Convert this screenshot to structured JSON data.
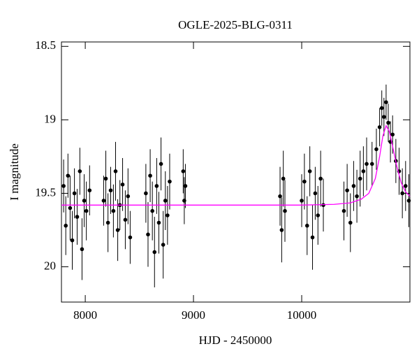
{
  "chart_data": {
    "type": "scatter",
    "title": "OGLE-2025-BLG-0311",
    "x_label": "HJD - 2450000",
    "y_label": "I magnitude",
    "xlim": [
      7780,
      11000
    ],
    "ylim": [
      20.24,
      18.47
    ],
    "xticks": [
      8000,
      9000,
      10000
    ],
    "yticks": [
      18.5,
      19,
      19.5,
      20
    ],
    "series": [
      {
        "type": "scatter",
        "color": "#000000",
        "x": [
          7800,
          7820,
          7840,
          7860,
          7880,
          7900,
          7925,
          7950,
          7970,
          7990,
          8010,
          8040,
          8170,
          8190,
          8210,
          8235,
          8260,
          8280,
          8300,
          8320,
          8345,
          8370,
          8395,
          8415,
          8560,
          8580,
          8600,
          8620,
          8640,
          8660,
          8680,
          8700,
          8720,
          8740,
          8760,
          8780,
          8905,
          8915,
          8925,
          9800,
          9815,
          9830,
          9845,
          10000,
          10025,
          10050,
          10075,
          10100,
          10125,
          10150,
          10175,
          10200,
          10390,
          10420,
          10450,
          10480,
          10510,
          10540,
          10570,
          10600,
          10650,
          10690,
          10720,
          10740,
          10760,
          10780,
          10800,
          10820,
          10840,
          10870,
          10900,
          10930,
          10960,
          10990
        ],
        "values": [
          19.45,
          19.72,
          19.38,
          19.6,
          19.82,
          19.5,
          19.66,
          19.35,
          19.88,
          19.55,
          19.62,
          19.48,
          19.55,
          19.4,
          19.7,
          19.48,
          19.62,
          19.35,
          19.75,
          19.58,
          19.44,
          19.68,
          19.52,
          19.8,
          19.5,
          19.78,
          19.38,
          19.62,
          19.9,
          19.45,
          19.7,
          19.3,
          19.85,
          19.55,
          19.65,
          19.42,
          19.35,
          19.55,
          19.45,
          19.52,
          19.75,
          19.4,
          19.62,
          19.55,
          19.42,
          19.72,
          19.35,
          19.8,
          19.5,
          19.65,
          19.4,
          19.58,
          19.62,
          19.48,
          19.7,
          19.45,
          19.52,
          19.4,
          19.35,
          19.3,
          19.3,
          19.2,
          19.05,
          18.92,
          18.98,
          18.88,
          19.02,
          19.15,
          19.1,
          19.28,
          19.35,
          19.5,
          19.45,
          19.55
        ],
        "errors": [
          0.18,
          0.2,
          0.15,
          0.22,
          0.2,
          0.17,
          0.19,
          0.16,
          0.21,
          0.18,
          0.2,
          0.17,
          0.17,
          0.19,
          0.2,
          0.16,
          0.18,
          0.2,
          0.21,
          0.17,
          0.18,
          0.2,
          0.19,
          0.18,
          0.2,
          0.22,
          0.18,
          0.2,
          0.24,
          0.19,
          0.21,
          0.18,
          0.23,
          0.2,
          0.2,
          0.19,
          0.15,
          0.16,
          0.15,
          0.2,
          0.22,
          0.19,
          0.21,
          0.18,
          0.19,
          0.2,
          0.17,
          0.22,
          0.18,
          0.2,
          0.19,
          0.18,
          0.2,
          0.18,
          0.2,
          0.17,
          0.18,
          0.19,
          0.17,
          0.18,
          0.15,
          0.14,
          0.13,
          0.12,
          0.13,
          0.12,
          0.13,
          0.14,
          0.13,
          0.15,
          0.16,
          0.17,
          0.17,
          0.18
        ]
      },
      {
        "type": "line",
        "color": "#ff00ff",
        "x": [
          7780,
          10000,
          10300,
          10450,
          10550,
          10620,
          10680,
          10720,
          10750,
          10780,
          10810,
          10840,
          10880,
          10920,
          10960,
          11000
        ],
        "values": [
          19.58,
          19.58,
          19.575,
          19.565,
          19.54,
          19.5,
          19.4,
          19.25,
          19.11,
          19.04,
          19.08,
          19.18,
          19.32,
          19.43,
          19.49,
          19.52
        ]
      }
    ]
  }
}
